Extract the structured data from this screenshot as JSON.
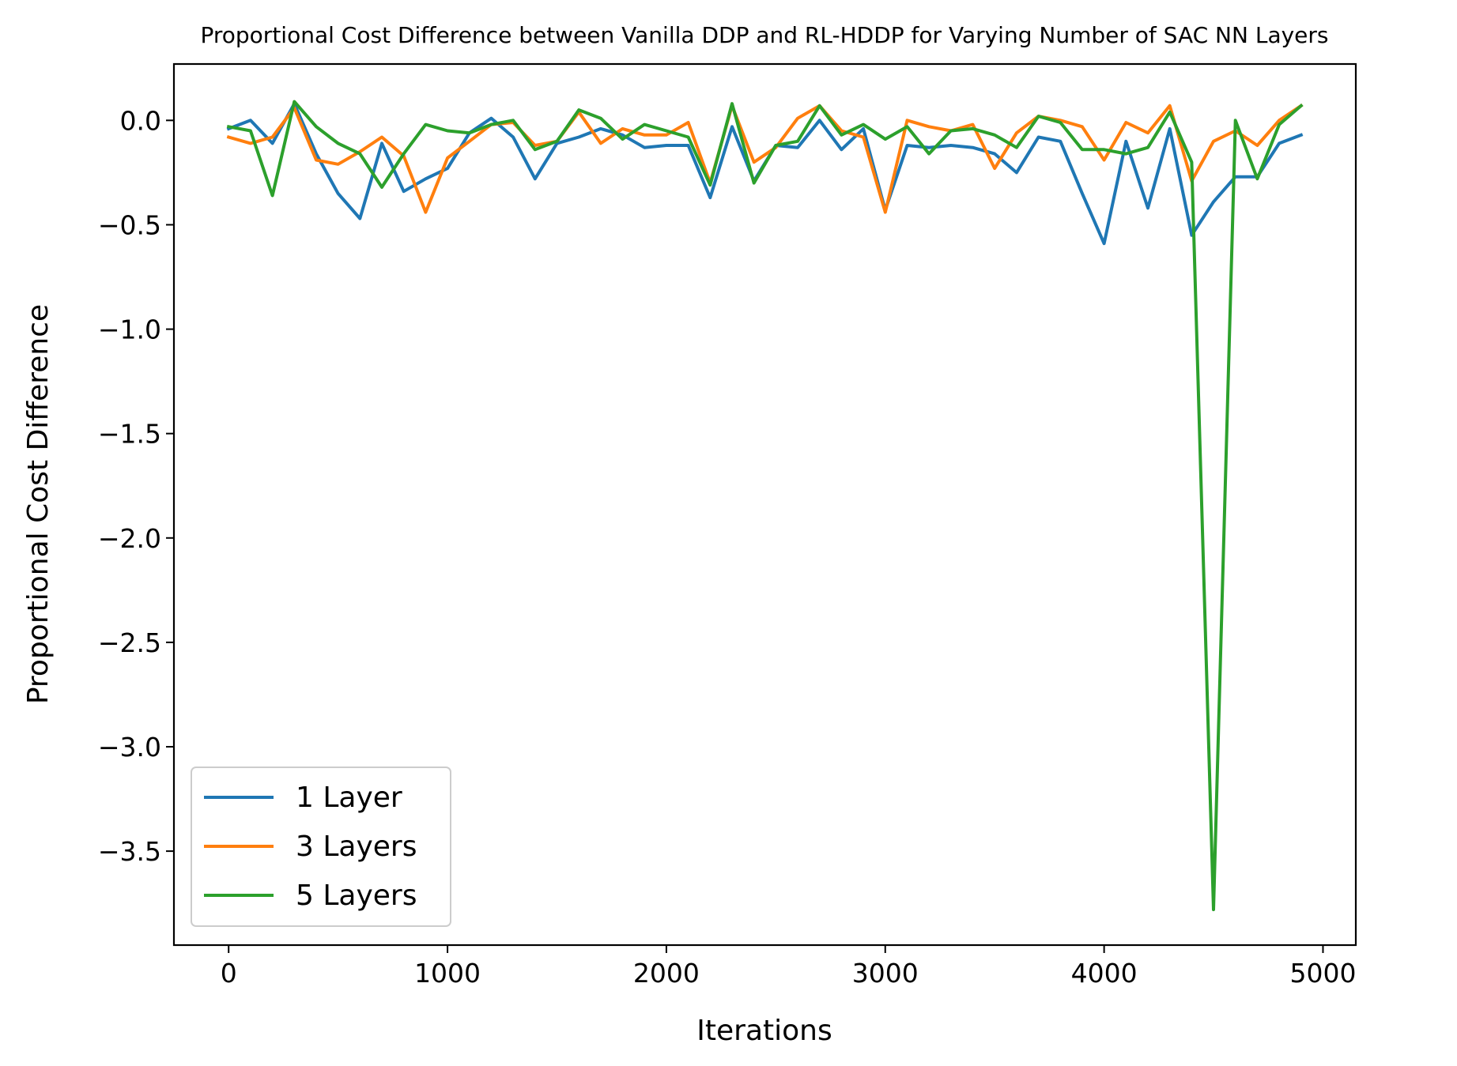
{
  "chart_data": {
    "type": "line",
    "title": "Proportional Cost Difference between Vanilla DDP and RL-HDDP for Varying Number of SAC NN Layers",
    "xlabel": "Iterations",
    "ylabel": "Proportional Cost Difference",
    "xlim": [
      -250,
      5150
    ],
    "ylim": [
      -3.95,
      0.27
    ],
    "xticks": [
      0,
      1000,
      2000,
      3000,
      4000,
      5000
    ],
    "xtick_labels": [
      "0",
      "1000",
      "2000",
      "3000",
      "4000",
      "5000"
    ],
    "yticks": [
      0.0,
      -0.5,
      -1.0,
      -1.5,
      -2.0,
      -2.5,
      -3.0,
      -3.5
    ],
    "ytick_labels": [
      "0.0",
      "−0.5",
      "−1.0",
      "−1.5",
      "−2.0",
      "−2.5",
      "−3.0",
      "−3.5"
    ],
    "grid": false,
    "legend_position": "lower-left",
    "x": [
      0,
      100,
      200,
      300,
      400,
      500,
      600,
      700,
      800,
      900,
      1000,
      1100,
      1200,
      1300,
      1400,
      1500,
      1600,
      1700,
      1800,
      1900,
      2000,
      2100,
      2200,
      2300,
      2400,
      2500,
      2600,
      2700,
      2800,
      2900,
      3000,
      3100,
      3200,
      3300,
      3400,
      3500,
      3600,
      3700,
      3800,
      3900,
      4000,
      4100,
      4200,
      4300,
      4400,
      4500,
      4600,
      4700,
      4800,
      4900
    ],
    "series": [
      {
        "name": "1 Layer",
        "color": "#1f77b4",
        "values": [
          -0.04,
          0.0,
          -0.11,
          0.08,
          -0.16,
          -0.35,
          -0.47,
          -0.11,
          -0.34,
          -0.28,
          -0.23,
          -0.06,
          0.01,
          -0.08,
          -0.28,
          -0.11,
          -0.08,
          -0.04,
          -0.07,
          -0.13,
          -0.12,
          -0.12,
          -0.37,
          -0.03,
          -0.29,
          -0.12,
          -0.13,
          0.0,
          -0.14,
          -0.04,
          -0.43,
          -0.12,
          -0.13,
          -0.12,
          -0.13,
          -0.16,
          -0.25,
          -0.08,
          -0.1,
          -0.35,
          -0.59,
          -0.1,
          -0.42,
          -0.04,
          -0.55,
          -0.39,
          -0.27,
          -0.27,
          -0.11,
          -0.07
        ]
      },
      {
        "name": "3 Layers",
        "color": "#ff7f0e",
        "values": [
          -0.08,
          -0.11,
          -0.08,
          0.06,
          -0.19,
          -0.21,
          -0.15,
          -0.08,
          -0.17,
          -0.44,
          -0.18,
          -0.1,
          -0.02,
          -0.01,
          -0.12,
          -0.1,
          0.04,
          -0.11,
          -0.04,
          -0.07,
          -0.07,
          -0.01,
          -0.3,
          0.07,
          -0.2,
          -0.13,
          0.01,
          0.07,
          -0.05,
          -0.08,
          -0.44,
          0.0,
          -0.03,
          -0.05,
          -0.02,
          -0.23,
          -0.06,
          0.02,
          0.0,
          -0.03,
          -0.19,
          -0.01,
          -0.06,
          0.07,
          -0.29,
          -0.1,
          -0.05,
          -0.12,
          0.0,
          0.07
        ]
      },
      {
        "name": "5 Layers",
        "color": "#2ca02c",
        "values": [
          -0.03,
          -0.05,
          -0.36,
          0.09,
          -0.03,
          -0.11,
          -0.16,
          -0.32,
          -0.16,
          -0.02,
          -0.05,
          -0.06,
          -0.02,
          0.0,
          -0.14,
          -0.1,
          0.05,
          0.01,
          -0.09,
          -0.02,
          -0.05,
          -0.08,
          -0.31,
          0.08,
          -0.3,
          -0.12,
          -0.1,
          0.07,
          -0.07,
          -0.02,
          -0.09,
          -0.03,
          -0.16,
          -0.05,
          -0.04,
          -0.07,
          -0.13,
          0.02,
          -0.01,
          -0.14,
          -0.14,
          -0.16,
          -0.13,
          0.04,
          -0.2,
          -3.78,
          0.0,
          -0.28,
          -0.02,
          0.07
        ]
      }
    ]
  }
}
